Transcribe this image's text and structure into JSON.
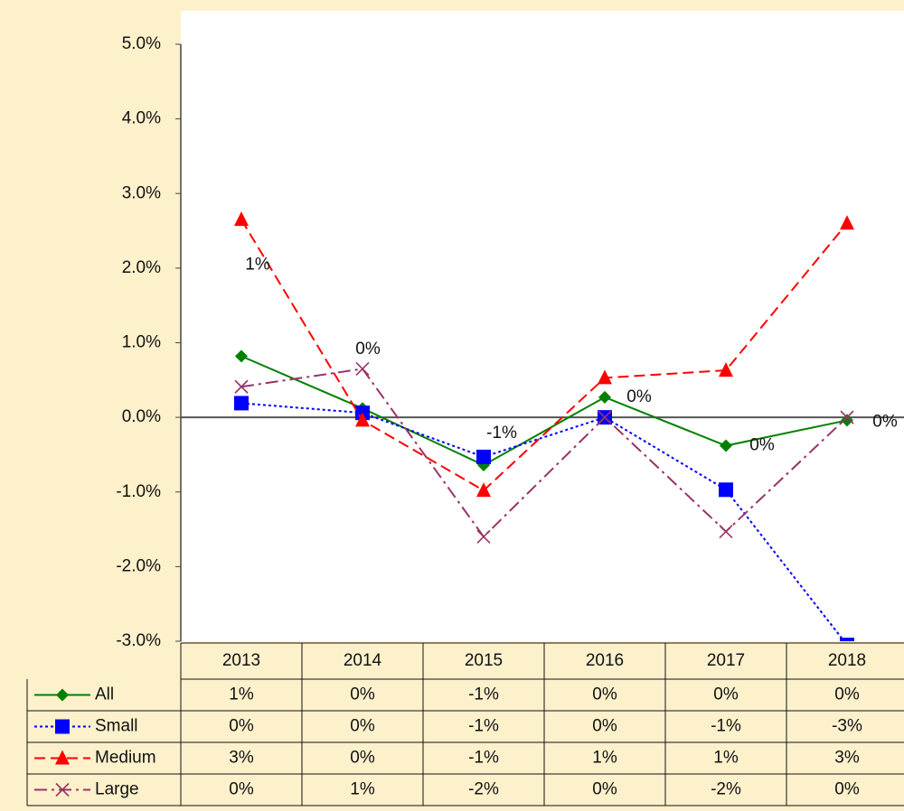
{
  "chart_data": {
    "type": "line",
    "categories": [
      "2013",
      "2014",
      "2015",
      "2016",
      "2017",
      "2018"
    ],
    "series": [
      {
        "name": "All",
        "color": "#008000",
        "marker": "diamond",
        "dash": "solid",
        "values": [
          0.82,
          0.12,
          -0.64,
          0.27,
          -0.38,
          -0.04
        ],
        "value_labels": [
          "1%",
          "0%",
          "-1%",
          "0%",
          "0%",
          "0%"
        ],
        "data_labels": true
      },
      {
        "name": "Small",
        "color": "#0000ff",
        "marker": "square",
        "dash": "dotted",
        "values": [
          0.19,
          0.06,
          -0.53,
          0.0,
          -0.97,
          -3.05
        ],
        "value_labels": [
          "0%",
          "0%",
          "-1%",
          "0%",
          "-1%",
          "-3%"
        ]
      },
      {
        "name": "Medium",
        "color": "#ff0000",
        "marker": "triangle",
        "dash": "dashed",
        "values": [
          2.65,
          -0.04,
          -0.98,
          0.53,
          0.63,
          2.6
        ],
        "value_labels": [
          "3%",
          "0%",
          "-1%",
          "1%",
          "1%",
          "3%"
        ]
      },
      {
        "name": "Large",
        "color": "#993366",
        "marker": "x",
        "dash": "dashdot",
        "values": [
          0.41,
          0.65,
          -1.6,
          0.0,
          -1.53,
          0.0
        ],
        "value_labels": [
          "0%",
          "1%",
          "-2%",
          "0%",
          "-2%",
          "0%"
        ]
      }
    ],
    "ylim": [
      -3,
      5
    ],
    "yticks": [
      {
        "value": 5,
        "label": "5.0%"
      },
      {
        "value": 4,
        "label": "4.0%"
      },
      {
        "value": 3,
        "label": "3.0%"
      },
      {
        "value": 2,
        "label": "2.0%"
      },
      {
        "value": 1,
        "label": "1.0%"
      },
      {
        "value": 0,
        "label": "0.0%"
      },
      {
        "value": -1,
        "label": "-1.0%"
      },
      {
        "value": -2,
        "label": "-2.0%"
      },
      {
        "value": -3,
        "label": "-3.0%"
      }
    ],
    "data_table": true
  }
}
